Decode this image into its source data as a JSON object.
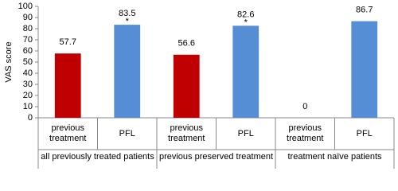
{
  "chart_data": {
    "type": "bar",
    "y_label": "VAS score",
    "categories": [
      "previous treatment",
      "PFL",
      "previous treatment",
      "PFL",
      "previous treatment",
      "PFL"
    ],
    "groups": [
      "all previously treated patients",
      "previous preserved treatment",
      "treatment naïve patients"
    ],
    "values": [
      57.7,
      83.5,
      56.6,
      82.6,
      0,
      86.7
    ],
    "colors": [
      "#c00000",
      "#558ed5",
      "#c00000",
      "#558ed5",
      "#c00000",
      "#558ed5"
    ],
    "value_markers": [
      null,
      "*",
      null,
      "*",
      null,
      null
    ],
    "marker_color": "#e03030",
    "ylim": [
      0,
      100
    ],
    "yticks": [
      0,
      10,
      20,
      30,
      40,
      50,
      60,
      70,
      80,
      90,
      100
    ],
    "grid": false
  }
}
